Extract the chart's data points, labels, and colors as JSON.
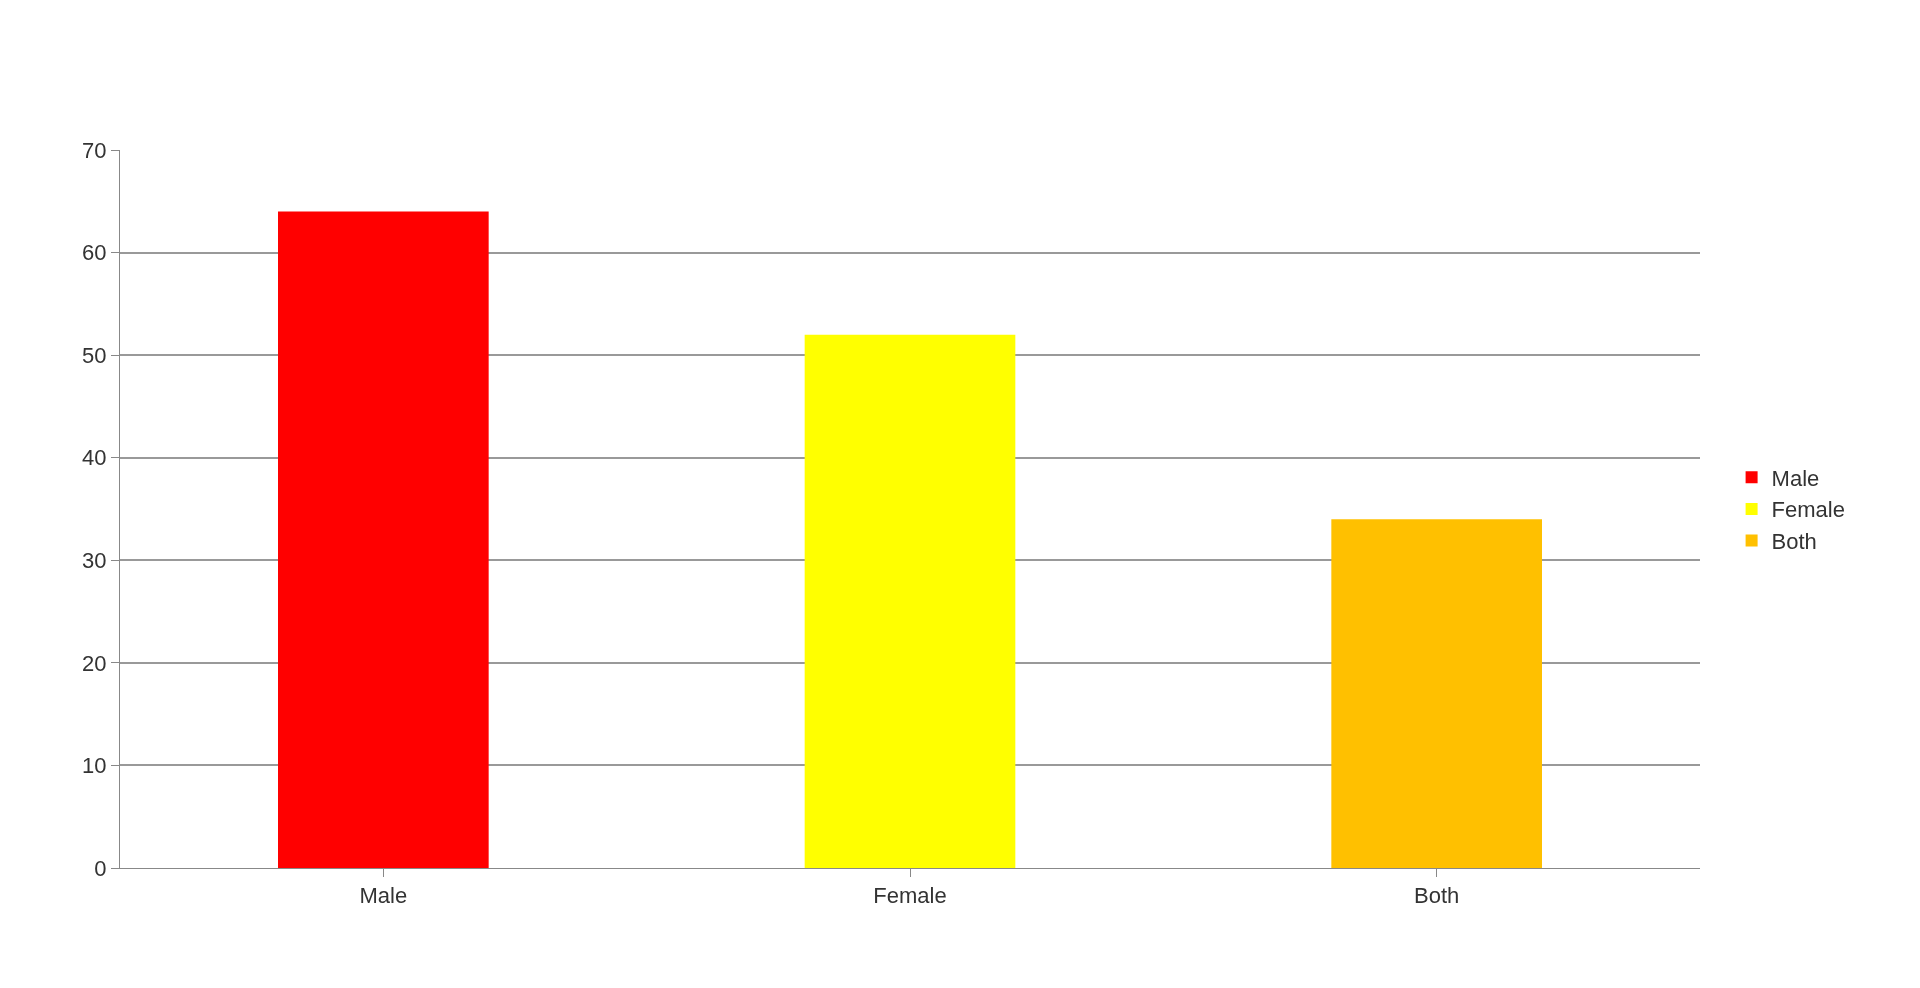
{
  "chart_data": {
    "type": "bar",
    "categories": [
      "Male",
      "Female",
      "Both"
    ],
    "series": [
      {
        "name": "Male",
        "color": "#ff0000",
        "values": [
          64,
          null,
          null
        ]
      },
      {
        "name": "Female",
        "color": "#ffff00",
        "values": [
          null,
          52,
          null
        ]
      },
      {
        "name": "Both",
        "color": "#ffc000",
        "values": [
          null,
          null,
          34
        ]
      }
    ],
    "ylim": [
      0,
      70
    ],
    "yticks": [
      0,
      10,
      20,
      30,
      40,
      50,
      60,
      70
    ],
    "grid": "y",
    "legend": "right"
  }
}
